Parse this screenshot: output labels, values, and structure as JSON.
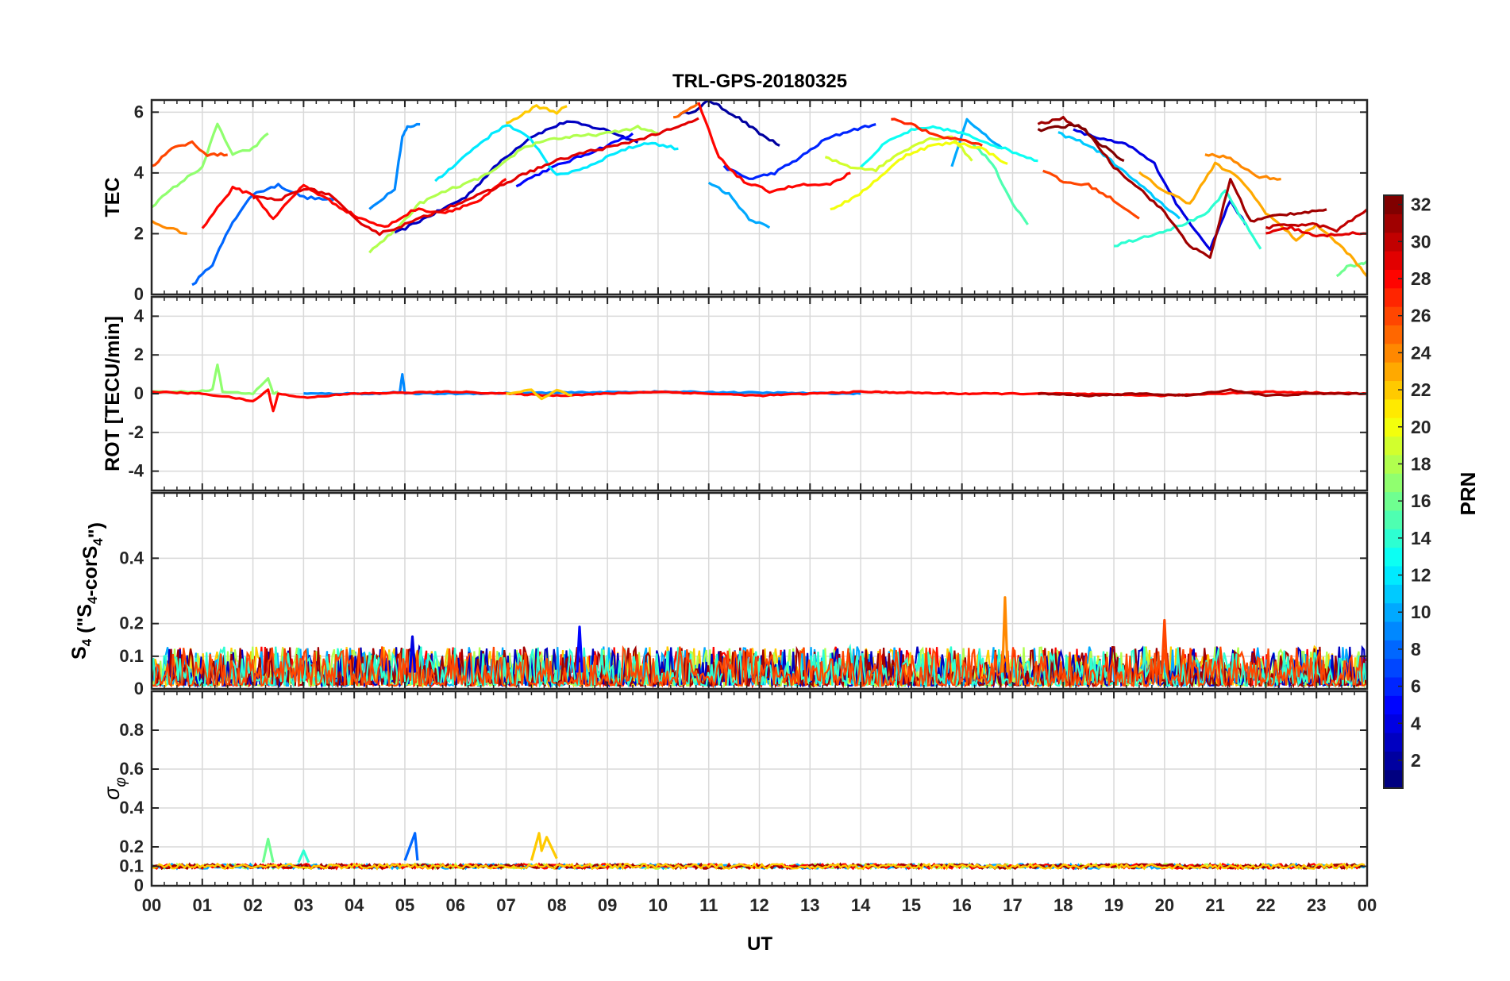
{
  "figure": {
    "title": "TRL-GPS-20180325",
    "xlabel": "UT",
    "x_ticks": [
      "00",
      "01",
      "02",
      "03",
      "04",
      "05",
      "06",
      "07",
      "08",
      "09",
      "10",
      "11",
      "12",
      "13",
      "14",
      "15",
      "16",
      "17",
      "18",
      "19",
      "20",
      "21",
      "22",
      "23",
      "00"
    ],
    "x_range_hours": [
      0,
      24
    ]
  },
  "colorbar": {
    "label": "PRN",
    "range": [
      1,
      32
    ],
    "ticks": [
      "2",
      "4",
      "6",
      "8",
      "10",
      "12",
      "14",
      "16",
      "18",
      "20",
      "22",
      "24",
      "26",
      "28",
      "30",
      "32"
    ]
  },
  "chart_data": [
    {
      "type": "line",
      "panel": "tec",
      "ylabel": "TEC",
      "ylim": [
        0,
        6.4
      ],
      "yticks": [
        "0",
        "2",
        "4",
        "6"
      ],
      "grid": true,
      "series": [
        {
          "name": "PRN 2",
          "prn": 2,
          "x": [
            10.4,
            10.8,
            11.0,
            11.2,
            11.6,
            12.0,
            12.4
          ],
          "y": [
            5.9,
            6.1,
            6.4,
            6.2,
            5.8,
            5.3,
            4.9
          ]
        },
        {
          "name": "PRN 3",
          "prn": 3,
          "x": [
            4.8,
            5.5,
            6.2,
            6.9,
            7.5,
            8.2,
            9.0,
            9.6
          ],
          "y": [
            2.0,
            2.6,
            3.2,
            4.4,
            5.2,
            5.7,
            5.4,
            5.0
          ]
        },
        {
          "name": "PRN 5",
          "prn": 5,
          "x": [
            7.2,
            7.8,
            8.4,
            9.0,
            9.5
          ],
          "y": [
            3.6,
            4.1,
            4.5,
            4.9,
            5.3
          ]
        },
        {
          "name": "PRN 4",
          "prn": 4,
          "x": [
            18.2,
            18.8,
            19.3,
            19.8,
            20.3,
            20.9,
            21.3,
            21.6
          ],
          "y": [
            5.4,
            5.1,
            4.9,
            4.3,
            2.8,
            1.5,
            3.1,
            2.3
          ]
        },
        {
          "name": "PRN 6",
          "prn": 6,
          "x": [
            11.3,
            11.8,
            12.3,
            12.8,
            13.3,
            13.8,
            14.3
          ],
          "y": [
            4.2,
            3.8,
            4.0,
            4.5,
            5.1,
            5.4,
            5.6
          ]
        },
        {
          "name": "PRN 8",
          "prn": 8,
          "x": [
            0.8,
            1.2,
            1.6,
            2.0,
            2.5,
            3.0,
            3.6
          ],
          "y": [
            0.3,
            1.0,
            2.4,
            3.3,
            3.6,
            3.2,
            3.1
          ]
        },
        {
          "name": "PRN 9",
          "prn": 9,
          "x": [
            4.3,
            4.8,
            4.95,
            5.05,
            5.3
          ],
          "y": [
            2.8,
            3.5,
            5.2,
            5.5,
            5.6
          ]
        },
        {
          "name": "PRN 10",
          "prn": 10,
          "x": [
            11.0,
            11.4,
            11.8,
            12.2
          ],
          "y": [
            3.7,
            3.3,
            2.5,
            2.2
          ]
        },
        {
          "name": "PRN 10b",
          "prn": 10,
          "x": [
            15.8,
            16.1,
            16.4,
            16.8
          ],
          "y": [
            4.2,
            5.8,
            5.3,
            4.8
          ]
        },
        {
          "name": "PRN 11",
          "prn": 11,
          "x": [
            17.9,
            18.4,
            18.8,
            19.3,
            19.8,
            20.3
          ],
          "y": [
            5.3,
            5.0,
            4.6,
            3.9,
            3.2,
            2.5
          ]
        },
        {
          "name": "PRN 12",
          "prn": 12,
          "x": [
            5.6,
            6.0,
            6.5,
            7.0,
            7.5,
            8.0,
            8.6,
            9.2,
            9.8,
            10.4
          ],
          "y": [
            3.7,
            4.3,
            5.0,
            5.6,
            5.1,
            3.9,
            4.2,
            4.7,
            5.0,
            4.8
          ]
        },
        {
          "name": "PRN 13",
          "prn": 13,
          "x": [
            14.0,
            14.5,
            15.0,
            15.5,
            16.0,
            16.5,
            17.0,
            17.5
          ],
          "y": [
            4.2,
            5.0,
            5.4,
            5.5,
            5.3,
            5.0,
            4.7,
            4.4
          ]
        },
        {
          "name": "PRN 14",
          "prn": 14,
          "x": [
            19.0,
            19.6,
            20.2,
            20.8,
            21.2,
            21.6,
            21.9
          ],
          "y": [
            1.6,
            1.9,
            2.2,
            2.6,
            3.4,
            2.3,
            1.5
          ]
        },
        {
          "name": "PRN 15",
          "prn": 15,
          "x": [
            16.2,
            16.6,
            17.0,
            17.3
          ],
          "y": [
            5.0,
            4.3,
            3.0,
            2.3
          ]
        },
        {
          "name": "PRN 16",
          "prn": 16,
          "x": [
            23.4,
            23.6,
            23.9,
            24.0
          ],
          "y": [
            0.6,
            0.9,
            1.0,
            1.1
          ]
        },
        {
          "name": "PRN 17",
          "prn": 17,
          "x": [
            0.0,
            0.5,
            1.0,
            1.3,
            1.6,
            2.0,
            2.3
          ],
          "y": [
            2.9,
            3.6,
            4.2,
            5.6,
            4.6,
            4.8,
            5.3
          ]
        },
        {
          "name": "PRN 18",
          "prn": 18,
          "x": [
            4.3,
            4.8,
            5.3,
            5.8,
            6.3,
            6.8,
            7.3,
            7.8,
            8.4,
            9.0,
            9.6,
            10.0
          ],
          "y": [
            1.4,
            2.1,
            3.0,
            3.4,
            3.7,
            4.1,
            4.8,
            5.1,
            5.2,
            5.3,
            5.5,
            5.3
          ]
        },
        {
          "name": "PRN 19",
          "prn": 19,
          "x": [
            13.3,
            13.8,
            14.3,
            14.8,
            15.3,
            15.8,
            16.2
          ],
          "y": [
            4.5,
            4.2,
            4.1,
            4.7,
            5.1,
            5.2,
            4.4
          ]
        },
        {
          "name": "PRN 20",
          "prn": 20,
          "x": [
            13.4,
            13.9,
            14.4,
            14.9,
            15.4,
            15.9,
            16.4,
            16.9
          ],
          "y": [
            2.8,
            3.2,
            3.9,
            4.6,
            4.9,
            5.0,
            4.8,
            4.3
          ]
        },
        {
          "name": "PRN 22",
          "prn": 22,
          "x": [
            7.0,
            7.3,
            7.6,
            8.0,
            8.2
          ],
          "y": [
            5.6,
            5.9,
            6.2,
            6.0,
            6.2
          ]
        },
        {
          "name": "PRN 23",
          "prn": 23,
          "x": [
            19.5,
            20.0,
            20.5,
            21.0,
            21.5,
            22.0,
            22.6,
            23.0,
            23.6,
            24.0
          ],
          "y": [
            4.0,
            3.4,
            3.0,
            4.3,
            3.8,
            2.7,
            1.8,
            2.3,
            1.4,
            0.6
          ]
        },
        {
          "name": "PRN 24",
          "prn": 24,
          "x": [
            0.0,
            0.3,
            0.7
          ],
          "y": [
            2.4,
            2.2,
            2.0
          ]
        },
        {
          "name": "PRN 24b",
          "prn": 24,
          "x": [
            20.8,
            21.3,
            21.8,
            22.3
          ],
          "y": [
            4.6,
            4.5,
            3.9,
            3.8
          ]
        },
        {
          "name": "PRN 25",
          "prn": 25,
          "x": [
            10.3,
            10.5,
            10.8
          ],
          "y": [
            5.8,
            6.0,
            6.3
          ]
        },
        {
          "name": "PRN 26",
          "prn": 26,
          "x": [
            17.6,
            18.0,
            18.5,
            19.0,
            19.5
          ],
          "y": [
            4.1,
            3.7,
            3.6,
            3.1,
            2.5
          ]
        },
        {
          "name": "PRN 26b",
          "prn": 26,
          "x": [
            0.0,
            0.4,
            0.8,
            1.1,
            1.5
          ],
          "y": [
            4.2,
            4.8,
            5.0,
            4.6,
            4.6
          ]
        },
        {
          "name": "PRN 27",
          "prn": 27,
          "x": [
            14.6,
            15.0,
            15.5,
            16.0,
            16.4
          ],
          "y": [
            5.8,
            5.6,
            5.2,
            5.1,
            4.9
          ]
        },
        {
          "name": "PRN 28",
          "prn": 28,
          "x": [
            1.0,
            1.6,
            2.0,
            2.4,
            3.0,
            3.5,
            4.0,
            4.6,
            5.2,
            5.8,
            6.5,
            7.0
          ],
          "y": [
            2.2,
            3.5,
            3.3,
            2.5,
            3.6,
            3.1,
            2.6,
            2.2,
            2.8,
            2.7,
            3.1,
            3.8
          ]
        },
        {
          "name": "PRN 28b",
          "prn": 28,
          "x": [
            10.8,
            11.2,
            11.7,
            12.2,
            12.8,
            13.4,
            13.8
          ],
          "y": [
            6.3,
            4.5,
            3.7,
            3.4,
            3.6,
            3.6,
            4.0
          ]
        },
        {
          "name": "PRN 29",
          "prn": 29,
          "x": [
            2.0,
            2.5,
            3.0,
            3.5,
            4.0,
            4.5,
            5.0,
            5.6,
            6.2,
            6.8,
            7.4,
            8.0,
            8.6,
            9.2,
            9.8,
            10.4,
            10.8
          ],
          "y": [
            3.2,
            3.1,
            3.5,
            3.3,
            2.5,
            2.0,
            2.3,
            2.7,
            3.1,
            3.5,
            4.0,
            4.4,
            4.7,
            4.9,
            5.2,
            5.5,
            5.8
          ]
        },
        {
          "name": "PRN 29b",
          "prn": 29,
          "x": [
            22.0,
            22.5,
            23.0,
            23.5,
            24.0
          ],
          "y": [
            2.0,
            2.2,
            1.9,
            2.0,
            2.0
          ]
        },
        {
          "name": "PRN 30",
          "prn": 30,
          "x": [
            22.0,
            22.5,
            23.0,
            23.4,
            24.0
          ],
          "y": [
            2.2,
            2.3,
            2.3,
            2.1,
            2.8
          ]
        },
        {
          "name": "PRN 31",
          "prn": 31,
          "x": [
            17.5,
            18.0,
            18.5,
            19.0,
            19.5,
            20.0,
            20.5,
            20.9,
            21.3,
            21.7,
            22.2,
            22.7,
            23.2
          ],
          "y": [
            5.6,
            5.8,
            5.3,
            4.2,
            3.5,
            2.7,
            1.6,
            1.2,
            3.8,
            2.4,
            2.6,
            2.7,
            2.8
          ]
        },
        {
          "name": "PRN 32",
          "prn": 32,
          "x": [
            17.5,
            17.9,
            18.3,
            18.7,
            19.2
          ],
          "y": [
            5.4,
            5.5,
            5.6,
            5.0,
            4.4
          ]
        }
      ]
    },
    {
      "type": "line",
      "panel": "rot",
      "ylabel": "ROT [TECU/min]",
      "ylim": [
        -5,
        5
      ],
      "yticks": [
        "-4",
        "-2",
        "0",
        "2",
        "4"
      ],
      "grid": true,
      "series": [
        {
          "name": "PRN 17",
          "prn": 17,
          "x": [
            0.0,
            0.8,
            1.2,
            1.3,
            1.4,
            2.0,
            2.3,
            2.4,
            2.5
          ],
          "y": [
            0.1,
            0.1,
            0.2,
            1.5,
            0.1,
            0.0,
            0.8,
            0.0,
            0.1
          ]
        },
        {
          "name": "PRN 9",
          "prn": 9,
          "x": [
            3.0,
            4.5,
            4.9,
            4.95,
            5.0,
            6.0,
            10.0,
            14.0
          ],
          "y": [
            0.0,
            0.0,
            0.1,
            1.0,
            0.0,
            0.0,
            0.1,
            0.0
          ]
        },
        {
          "name": "PRN 28",
          "prn": 28,
          "x": [
            0.0,
            1.0,
            1.6,
            2.0,
            2.3,
            2.4,
            2.5,
            3.0,
            4.0,
            6.0,
            8.0,
            10.0,
            12.0,
            14.0,
            16.0,
            18.0,
            20.0,
            22.0,
            24.0
          ],
          "y": [
            0.1,
            0.0,
            -0.2,
            -0.4,
            0.2,
            -0.9,
            0.0,
            -0.2,
            0.0,
            0.1,
            -0.1,
            0.1,
            -0.1,
            0.1,
            0.0,
            0.0,
            -0.1,
            0.1,
            0.0
          ]
        },
        {
          "name": "PRN 31",
          "prn": 31,
          "x": [
            17.5,
            18.5,
            19.5,
            20.5,
            21.0,
            21.3,
            22.0,
            23.0,
            24.0
          ],
          "y": [
            0.0,
            -0.1,
            0.0,
            -0.1,
            0.1,
            0.2,
            -0.1,
            0.0,
            0.0
          ]
        },
        {
          "name": "PRN 22",
          "prn": 22,
          "x": [
            7.0,
            7.5,
            7.7,
            8.0,
            8.3
          ],
          "y": [
            0.0,
            0.2,
            -0.3,
            0.2,
            -0.1
          ]
        }
      ]
    },
    {
      "type": "line",
      "panel": "s4",
      "ylabel": "S4 (\"S4-corS4\")",
      "ylim": [
        0,
        0.6
      ],
      "yticks": [
        "0",
        "0.1",
        "0.2",
        "0.4"
      ],
      "grid": true,
      "noise_band": [
        0.01,
        0.13
      ],
      "series": [
        {
          "name": "PRN 5",
          "prn": 5,
          "x": [
            8.4,
            8.45,
            8.5
          ],
          "y": [
            0.05,
            0.19,
            0.05
          ]
        },
        {
          "name": "PRN 24",
          "prn": 24,
          "x": [
            16.8,
            16.85,
            16.9
          ],
          "y": [
            0.05,
            0.28,
            0.05
          ]
        },
        {
          "name": "PRN 26",
          "prn": 26,
          "x": [
            19.95,
            20.0,
            20.05
          ],
          "y": [
            0.05,
            0.21,
            0.05
          ]
        },
        {
          "name": "PRN 4",
          "prn": 4,
          "x": [
            5.1,
            5.15,
            5.2
          ],
          "y": [
            0.05,
            0.16,
            0.05
          ]
        }
      ]
    },
    {
      "type": "line",
      "panel": "sigma",
      "ylabel": "σφ",
      "ylim": [
        0,
        1.0
      ],
      "yticks": [
        "0",
        "0.1",
        "0.2",
        "0.4",
        "0.6",
        "0.8"
      ],
      "grid": true,
      "baseline": 0.1,
      "series": [
        {
          "name": "PRN 16",
          "prn": 16,
          "x": [
            2.2,
            2.3,
            2.4
          ],
          "y": [
            0.12,
            0.24,
            0.12
          ]
        },
        {
          "name": "PRN 8",
          "prn": 8,
          "x": [
            5.0,
            5.2,
            5.25
          ],
          "y": [
            0.13,
            0.27,
            0.13
          ]
        },
        {
          "name": "PRN 22",
          "prn": 22,
          "x": [
            7.5,
            7.65,
            7.7,
            7.8,
            8.0
          ],
          "y": [
            0.13,
            0.27,
            0.18,
            0.25,
            0.14
          ]
        },
        {
          "name": "PRN 14",
          "prn": 14,
          "x": [
            2.9,
            3.0,
            3.1
          ],
          "y": [
            0.12,
            0.18,
            0.12
          ]
        }
      ]
    }
  ]
}
